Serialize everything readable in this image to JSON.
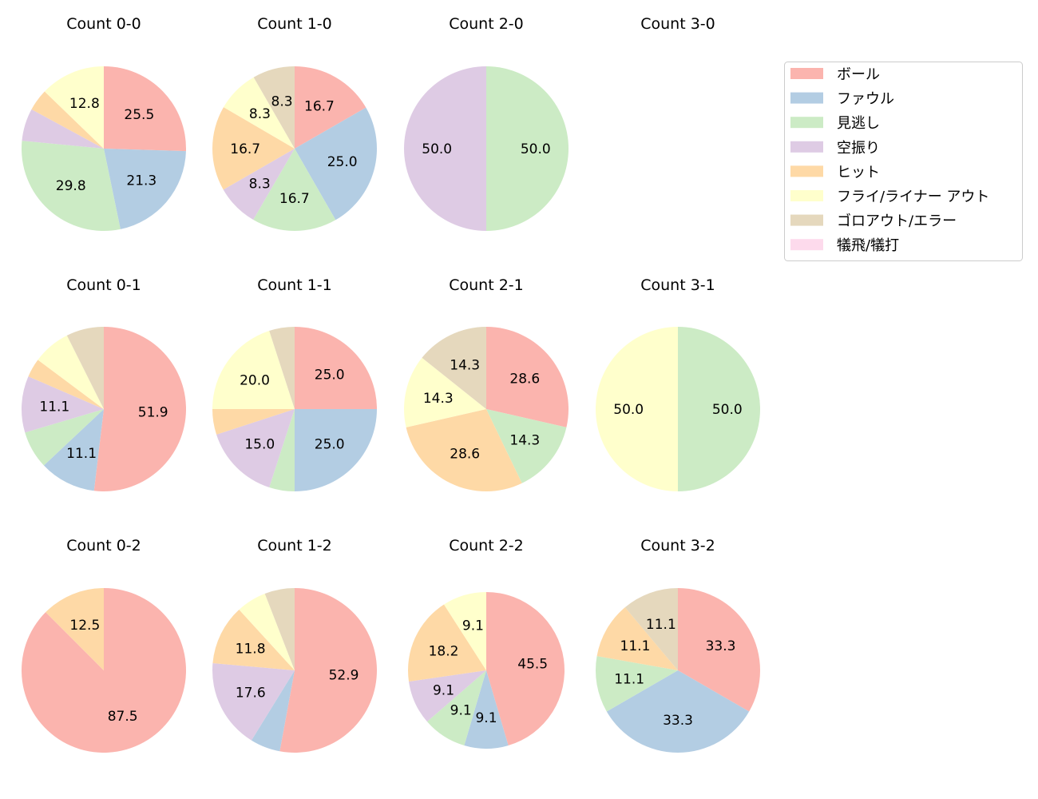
{
  "chart_data": {
    "type": "pie",
    "start_angle": 90,
    "direction": "clockwise",
    "label_threshold_percent": 8,
    "categories": [
      "ボール",
      "ファウル",
      "見逃し",
      "空振り",
      "ヒット",
      "フライ/ライナー アウト",
      "ゴロアウト/エラー",
      "犠飛/犠打"
    ],
    "colors": [
      "#fbb4ae",
      "#b3cde3",
      "#ccebc5",
      "#decbe4",
      "#fed9a6",
      "#ffffcc",
      "#e5d8bd",
      "#fddaec"
    ],
    "legend_position": "upper-right",
    "pies": [
      {
        "title": "Count 0-0",
        "values": [
          25.5,
          21.3,
          29.8,
          6.4,
          4.3,
          12.8,
          0,
          0
        ]
      },
      {
        "title": "Count 1-0",
        "values": [
          16.7,
          25.0,
          16.7,
          8.3,
          16.7,
          8.3,
          8.3,
          0
        ]
      },
      {
        "title": "Count 2-0",
        "values": [
          0,
          0,
          50.0,
          50.0,
          0,
          0,
          0,
          0
        ]
      },
      {
        "title": "Count 3-0",
        "values": [
          0,
          0,
          0,
          0,
          0,
          0,
          0,
          0
        ]
      },
      {
        "title": "Count 0-1",
        "values": [
          51.9,
          11.1,
          7.4,
          11.1,
          3.7,
          7.4,
          7.4,
          0
        ]
      },
      {
        "title": "Count 1-1",
        "values": [
          25.0,
          25.0,
          5.0,
          15.0,
          5.0,
          20.0,
          5.0,
          0
        ]
      },
      {
        "title": "Count 2-1",
        "values": [
          28.6,
          0,
          14.3,
          0,
          28.6,
          14.3,
          14.3,
          0
        ]
      },
      {
        "title": "Count 3-1",
        "values": [
          0,
          0,
          50.0,
          0,
          0,
          50.0,
          0,
          0
        ]
      },
      {
        "title": "Count 0-2",
        "values": [
          87.5,
          0,
          0,
          0,
          12.5,
          0,
          0,
          0
        ]
      },
      {
        "title": "Count 1-2",
        "values": [
          52.9,
          5.9,
          0,
          17.6,
          11.8,
          5.9,
          5.9,
          0
        ]
      },
      {
        "title": "Count 2-2",
        "values": [
          45.5,
          9.1,
          9.1,
          9.1,
          18.2,
          9.1,
          0,
          0
        ]
      },
      {
        "title": "Count 3-2",
        "values": [
          33.3,
          33.3,
          11.1,
          0,
          11.1,
          0,
          11.1,
          0
        ]
      }
    ]
  }
}
